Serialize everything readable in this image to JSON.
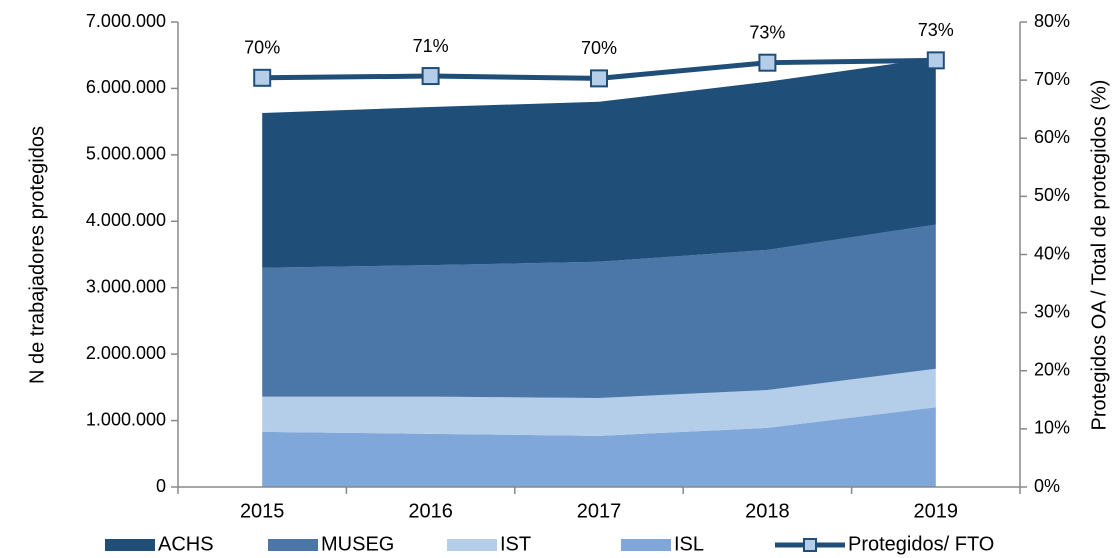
{
  "chart_data": {
    "type": "stacked_area_line",
    "y_label": "N de  trabajadores protegidos",
    "y2_label": "Protegidos OA / Total de protegidos (%)",
    "categories": [
      "2015",
      "2016",
      "2017",
      "2018",
      "2019"
    ],
    "series": [
      {
        "name": "ACHS",
        "color": "#1f4e79",
        "values": [
          2330000,
          2380000,
          2410000,
          2530000,
          2510000
        ]
      },
      {
        "name": "MUSEG",
        "color": "#4a76a8",
        "values": [
          1940000,
          1980000,
          2050000,
          2110000,
          2170000
        ]
      },
      {
        "name": "IST",
        "color": "#b4cde9",
        "values": [
          530000,
          560000,
          570000,
          570000,
          580000
        ]
      },
      {
        "name": "ISL",
        "color": "#7fa7d9",
        "values": [
          830000,
          800000,
          770000,
          890000,
          1200000
        ]
      },
      {
        "name": "Protegidos/ FTO",
        "color": "#1f4e79",
        "marker_color": "#b4cde9",
        "axis": "y2",
        "values": [
          70.4,
          70.7,
          70.3,
          73.0,
          73.4
        ],
        "value_labels": [
          "70%",
          "71%",
          "70%",
          "73%",
          "73%"
        ]
      }
    ],
    "ylim": [
      0,
      7000000
    ],
    "yticks": [
      0,
      {
        "value": 1000000,
        "label": "1.000.000"
      },
      {
        "value": 2000000,
        "label": "2.000.000"
      },
      {
        "value": 3000000,
        "label": "3.000.000"
      },
      {
        "value": 4000000,
        "label": "4.000.000"
      },
      {
        "value": 5000000,
        "label": "5.000.000"
      },
      {
        "value": 6000000,
        "label": "6.000.000"
      },
      {
        "value": 7000000,
        "label": "7.000.000"
      }
    ],
    "y2lim": [
      0,
      80
    ],
    "y2ticks": [
      {
        "value": 0,
        "label": "0%"
      },
      {
        "value": 10,
        "label": "10%"
      },
      {
        "value": 20,
        "label": "20%"
      },
      {
        "value": 30,
        "label": "30%"
      },
      {
        "value": 40,
        "label": "40%"
      },
      {
        "value": 50,
        "label": "50%"
      },
      {
        "value": 60,
        "label": "60%"
      },
      {
        "value": 70,
        "label": "70%"
      },
      {
        "value": 80,
        "label": "80%"
      }
    ]
  }
}
